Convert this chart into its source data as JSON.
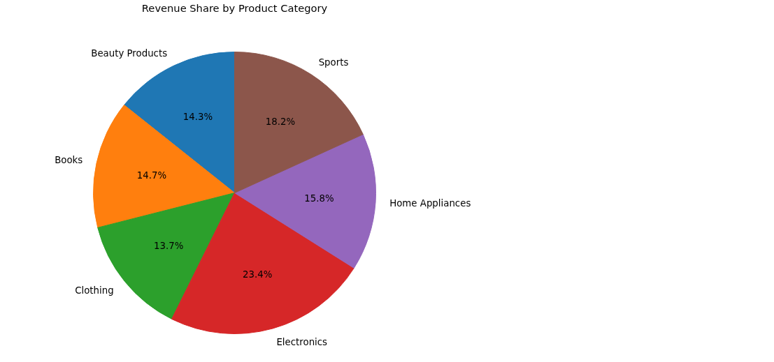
{
  "chart_data": {
    "type": "pie",
    "title": "Revenue Share by Product Category",
    "categories": [
      "Beauty Products",
      "Books",
      "Clothing",
      "Electronics",
      "Home Appliances",
      "Sports"
    ],
    "values": [
      14.3,
      14.7,
      13.7,
      23.4,
      15.8,
      18.2
    ],
    "colors": [
      "#1f77b4",
      "#ff7f0e",
      "#2ca02c",
      "#d62728",
      "#9467bd",
      "#8c564b"
    ],
    "value_labels": [
      "14.3%",
      "14.7%",
      "13.7%",
      "23.4%",
      "15.8%",
      "18.2%"
    ]
  }
}
